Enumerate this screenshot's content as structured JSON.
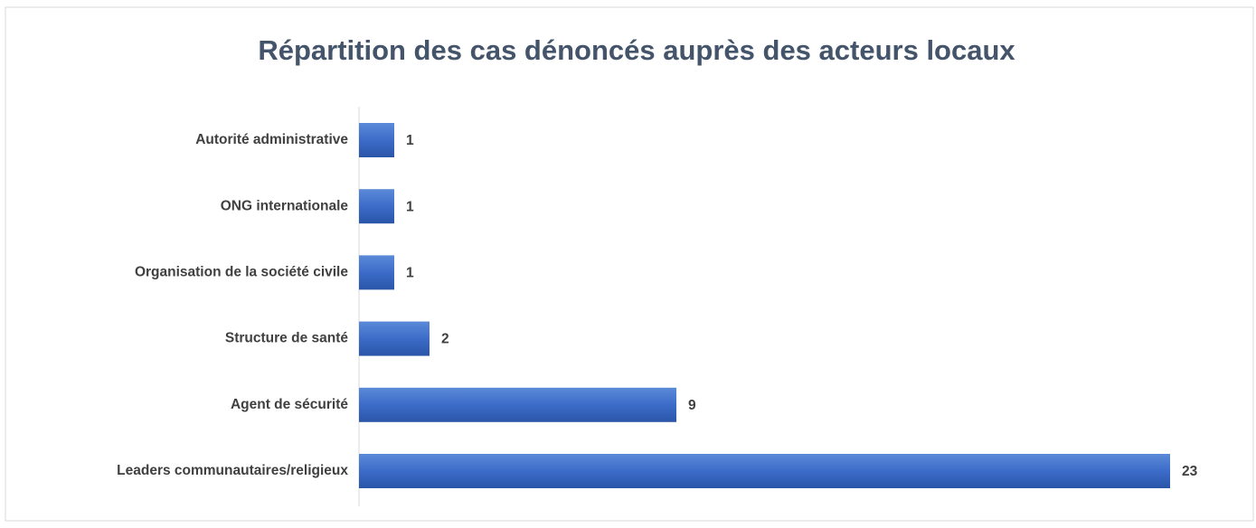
{
  "chart_data": {
    "type": "barh",
    "title": "Répartition des cas dénoncés auprès des acteurs locaux",
    "categories": [
      "Autorité administrative",
      "ONG internationale",
      "Organisation de la société civile",
      "Structure de santé",
      "Agent de sécurité",
      "Leaders communautaires/religieux"
    ],
    "values": [
      1,
      1,
      1,
      2,
      9,
      23
    ],
    "color": "#4472c4"
  }
}
